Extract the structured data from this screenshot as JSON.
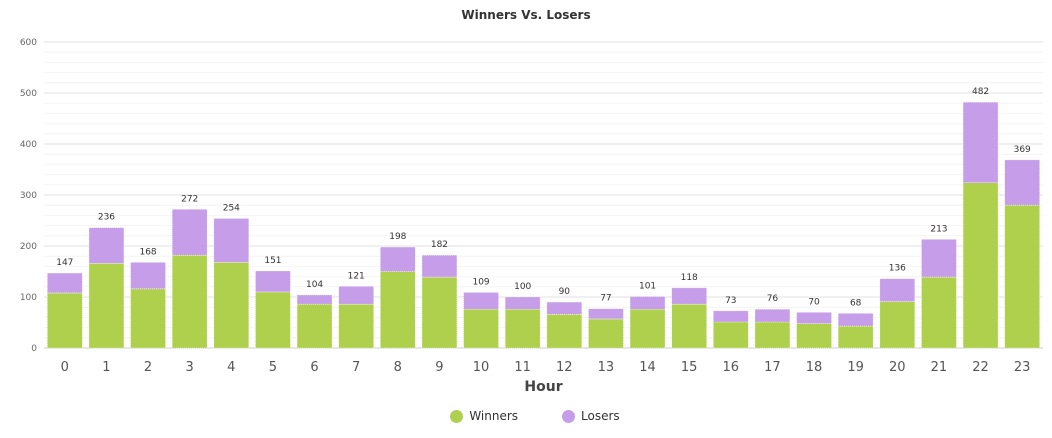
{
  "chart_data": {
    "type": "bar",
    "stacked": true,
    "title": "Winners Vs. Losers",
    "xlabel": "Hour",
    "ylabel": "",
    "ylim": [
      0,
      600
    ],
    "yticks": [
      0,
      100,
      200,
      300,
      400,
      500,
      600
    ],
    "grid": true,
    "legend_position": "bottom-center",
    "categories": [
      "0",
      "1",
      "2",
      "3",
      "4",
      "5",
      "6",
      "7",
      "8",
      "9",
      "10",
      "11",
      "12",
      "13",
      "14",
      "15",
      "16",
      "17",
      "18",
      "19",
      "20",
      "21",
      "22",
      "23"
    ],
    "series": [
      {
        "name": "Winners",
        "color": "#aed04c",
        "values": [
          108,
          166,
          116,
          182,
          168,
          110,
          86,
          86,
          150,
          139,
          76,
          76,
          66,
          57,
          76,
          86,
          51,
          51,
          48,
          43,
          91,
          139,
          324,
          280
        ]
      },
      {
        "name": "Losers",
        "color": "#c59de8",
        "values": [
          39,
          70,
          52,
          90,
          86,
          41,
          18,
          35,
          48,
          43,
          33,
          24,
          24,
          20,
          25,
          32,
          22,
          25,
          22,
          25,
          45,
          74,
          158,
          89
        ]
      }
    ],
    "totals": [
      147,
      236,
      168,
      272,
      254,
      151,
      104,
      121,
      198,
      182,
      109,
      100,
      90,
      77,
      101,
      118,
      73,
      76,
      70,
      68,
      136,
      213,
      482,
      369
    ]
  }
}
